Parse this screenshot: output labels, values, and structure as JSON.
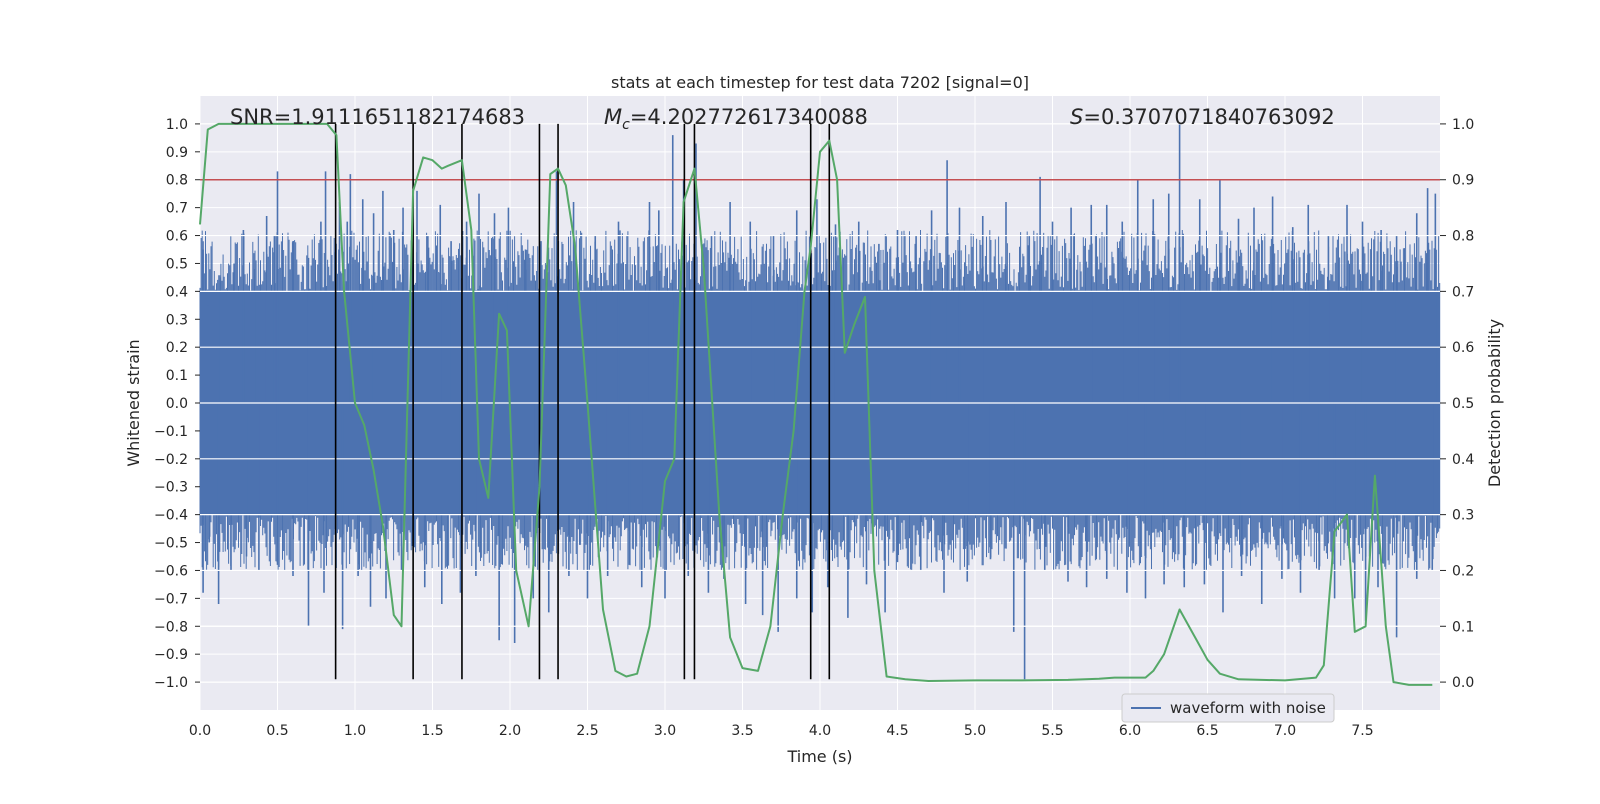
{
  "chart_data": {
    "type": "line",
    "title": "stats at each timestep for test data 7202 [signal=0]",
    "xlabel": "Time (s)",
    "ylabel_left": "Whitened strain",
    "ylabel_right": "Detection probability",
    "annotations": {
      "snr": "SNR=1.9111651182174683",
      "mc_symbol": "M",
      "mc_sub": "c",
      "mc_value": "=4.202772617340088",
      "s_symbol": "S",
      "s_value": "=0.3707071840763092"
    },
    "xlim": [
      0,
      8
    ],
    "ylim_left": [
      -1.1,
      1.1
    ],
    "ylim_right": [
      -0.05,
      1.05
    ],
    "x_ticks": [
      0,
      0.5,
      1,
      1.5,
      2,
      2.5,
      3,
      3.5,
      4,
      4.5,
      5,
      5.5,
      6,
      6.5,
      7,
      7.5
    ],
    "x_tick_labels": [
      "0.0",
      "0.5",
      "1.0",
      "1.5",
      "2.0",
      "2.5",
      "3.0",
      "3.5",
      "4.0",
      "4.5",
      "5.0",
      "5.5",
      "6.0",
      "6.5",
      "7.0",
      "7.5"
    ],
    "y_left_ticks": [
      -1.0,
      -0.9,
      -0.8,
      -0.7,
      -0.6,
      -0.5,
      -0.4,
      -0.3,
      -0.2,
      -0.1,
      0.0,
      0.1,
      0.2,
      0.3,
      0.4,
      0.5,
      0.6,
      0.7,
      0.8,
      0.9,
      1.0
    ],
    "y_left_tick_labels": [
      "−1.0",
      "−0.9",
      "−0.8",
      "−0.7",
      "−0.6",
      "−0.5",
      "−0.4",
      "−0.3",
      "−0.2",
      "−0.1",
      "0.0",
      "0.1",
      "0.2",
      "0.3",
      "0.4",
      "0.5",
      "0.6",
      "0.7",
      "0.8",
      "0.9",
      "1.0"
    ],
    "y_right_ticks": [
      0.0,
      0.1,
      0.2,
      0.3,
      0.4,
      0.5,
      0.6,
      0.7,
      0.8,
      0.9,
      1.0
    ],
    "y_right_tick_labels": [
      "0.0",
      "0.1",
      "0.2",
      "0.3",
      "0.4",
      "0.5",
      "0.6",
      "0.7",
      "0.8",
      "0.9",
      "1.0"
    ],
    "grid": true,
    "legend": {
      "position": "lower-right",
      "entries": [
        "waveform with noise"
      ]
    },
    "threshold": {
      "value": 0.9,
      "axis": "right",
      "color": "#c44e52"
    },
    "detection_lines_x": [
      0.875,
      1.375,
      1.69,
      2.19,
      2.31,
      3.125,
      3.19,
      3.94,
      4.06
    ],
    "detection_line_range": [
      -0.99,
      1.0
    ],
    "series": [
      {
        "name": "waveform with noise",
        "color": "#4c72b0",
        "axis": "left",
        "kind": "noise-envelope",
        "envelope_max": 0.4,
        "spikes_high": [
          [
            0.02,
            0.55
          ],
          [
            0.05,
            0.35
          ],
          [
            0.13,
            0.45
          ],
          [
            0.22,
            0.5
          ],
          [
            0.28,
            0.62
          ],
          [
            0.35,
            0.48
          ],
          [
            0.43,
            0.67
          ],
          [
            0.48,
            0.6
          ],
          [
            0.5,
            0.83
          ],
          [
            0.6,
            0.58
          ],
          [
            0.7,
            0.52
          ],
          [
            0.78,
            0.65
          ],
          [
            0.81,
            0.83
          ],
          [
            0.9,
            0.72
          ],
          [
            0.95,
            0.65
          ],
          [
            0.97,
            0.82
          ],
          [
            1.05,
            0.73
          ],
          [
            1.12,
            0.68
          ],
          [
            1.18,
            0.76
          ],
          [
            1.25,
            0.62
          ],
          [
            1.31,
            0.7
          ],
          [
            1.4,
            0.76
          ],
          [
            1.47,
            0.6
          ],
          [
            1.55,
            0.71
          ],
          [
            1.62,
            0.58
          ],
          [
            1.72,
            0.65
          ],
          [
            1.8,
            0.75
          ],
          [
            1.9,
            0.68
          ],
          [
            1.99,
            0.7
          ],
          [
            2.1,
            0.55
          ],
          [
            2.2,
            0.58
          ],
          [
            2.3,
            0.83
          ],
          [
            2.41,
            0.72
          ],
          [
            2.55,
            0.6
          ],
          [
            2.7,
            0.65
          ],
          [
            2.9,
            0.72
          ],
          [
            2.96,
            0.69
          ],
          [
            3.05,
            0.96
          ],
          [
            3.12,
            0.8
          ],
          [
            3.2,
            0.93
          ],
          [
            3.3,
            0.6
          ],
          [
            3.42,
            0.72
          ],
          [
            3.55,
            0.65
          ],
          [
            3.7,
            0.6
          ],
          [
            3.85,
            0.69
          ],
          [
            3.98,
            0.73
          ],
          [
            4.1,
            0.64
          ],
          [
            4.25,
            0.65
          ],
          [
            4.38,
            0.57
          ],
          [
            4.5,
            0.62
          ],
          [
            4.62,
            0.6
          ],
          [
            4.72,
            0.69
          ],
          [
            4.82,
            0.87
          ],
          [
            4.9,
            0.7
          ],
          [
            5.05,
            0.67
          ],
          [
            5.2,
            0.72
          ],
          [
            5.35,
            0.6
          ],
          [
            5.42,
            0.81
          ],
          [
            5.5,
            0.65
          ],
          [
            5.62,
            0.7
          ],
          [
            5.75,
            0.71
          ],
          [
            5.85,
            0.71
          ],
          [
            5.95,
            0.65
          ],
          [
            6.05,
            0.8
          ],
          [
            6.15,
            0.73
          ],
          [
            6.25,
            0.75
          ],
          [
            6.32,
            1.0
          ],
          [
            6.45,
            0.73
          ],
          [
            6.58,
            0.8
          ],
          [
            6.7,
            0.66
          ],
          [
            6.8,
            0.7
          ],
          [
            6.92,
            0.74
          ],
          [
            7.05,
            0.63
          ],
          [
            7.15,
            0.71
          ],
          [
            7.28,
            0.6
          ],
          [
            7.4,
            0.71
          ],
          [
            7.5,
            0.65
          ],
          [
            7.62,
            0.62
          ],
          [
            7.72,
            0.6
          ],
          [
            7.85,
            0.68
          ],
          [
            7.92,
            0.77
          ],
          [
            7.97,
            0.75
          ]
        ],
        "spikes_low": [
          [
            0.02,
            -0.68
          ],
          [
            0.06,
            -0.5
          ],
          [
            0.12,
            -0.72
          ],
          [
            0.2,
            -0.6
          ],
          [
            0.3,
            -0.55
          ],
          [
            0.38,
            -0.6
          ],
          [
            0.5,
            -0.58
          ],
          [
            0.6,
            -0.62
          ],
          [
            0.7,
            -0.8
          ],
          [
            0.8,
            -0.68
          ],
          [
            0.92,
            -0.81
          ],
          [
            1.02,
            -0.62
          ],
          [
            1.1,
            -0.73
          ],
          [
            1.2,
            -0.7
          ],
          [
            1.3,
            -0.6
          ],
          [
            1.45,
            -0.66
          ],
          [
            1.56,
            -0.72
          ],
          [
            1.68,
            -0.68
          ],
          [
            1.78,
            -0.62
          ],
          [
            1.93,
            -0.85
          ],
          [
            2.03,
            -0.86
          ],
          [
            2.15,
            -0.7
          ],
          [
            2.25,
            -0.75
          ],
          [
            2.38,
            -0.62
          ],
          [
            2.5,
            -0.7
          ],
          [
            2.63,
            -0.62
          ],
          [
            2.77,
            -0.58
          ],
          [
            2.85,
            -0.66
          ],
          [
            3.0,
            -0.7
          ],
          [
            3.15,
            -0.62
          ],
          [
            3.28,
            -0.68
          ],
          [
            3.38,
            -0.63
          ],
          [
            3.52,
            -0.72
          ],
          [
            3.63,
            -0.76
          ],
          [
            3.73,
            -0.82
          ],
          [
            3.85,
            -0.7
          ],
          [
            3.95,
            -0.75
          ],
          [
            4.05,
            -0.66
          ],
          [
            4.18,
            -0.77
          ],
          [
            4.3,
            -0.65
          ],
          [
            4.42,
            -0.75
          ],
          [
            4.5,
            -0.57
          ],
          [
            4.65,
            -0.6
          ],
          [
            4.8,
            -0.68
          ],
          [
            4.95,
            -0.64
          ],
          [
            5.1,
            -0.56
          ],
          [
            5.25,
            -0.82
          ],
          [
            5.32,
            -0.99
          ],
          [
            5.45,
            -0.6
          ],
          [
            5.6,
            -0.64
          ],
          [
            5.72,
            -0.66
          ],
          [
            5.85,
            -0.63
          ],
          [
            5.98,
            -0.68
          ],
          [
            6.1,
            -0.7
          ],
          [
            6.22,
            -0.65
          ],
          [
            6.35,
            -0.66
          ],
          [
            6.48,
            -0.65
          ],
          [
            6.6,
            -0.75
          ],
          [
            6.72,
            -0.62
          ],
          [
            6.85,
            -0.72
          ],
          [
            6.98,
            -0.63
          ],
          [
            7.1,
            -0.68
          ],
          [
            7.22,
            -0.6
          ],
          [
            7.32,
            -0.7
          ],
          [
            7.45,
            -0.7
          ],
          [
            7.52,
            -0.78
          ],
          [
            7.6,
            -0.66
          ],
          [
            7.72,
            -0.84
          ],
          [
            7.85,
            -0.63
          ],
          [
            7.95,
            -0.6
          ]
        ]
      },
      {
        "name": "",
        "color": "#55a868",
        "axis": "right",
        "points": [
          [
            0.0,
            0.82
          ],
          [
            0.05,
            0.99
          ],
          [
            0.12,
            1.0
          ],
          [
            0.3,
            1.0
          ],
          [
            0.6,
            1.0
          ],
          [
            0.82,
            1.0
          ],
          [
            0.88,
            0.98
          ],
          [
            0.93,
            0.7
          ],
          [
            1.0,
            0.5
          ],
          [
            1.06,
            0.46
          ],
          [
            1.12,
            0.38
          ],
          [
            1.18,
            0.28
          ],
          [
            1.25,
            0.12
          ],
          [
            1.3,
            0.1
          ],
          [
            1.375,
            0.88
          ],
          [
            1.44,
            0.94
          ],
          [
            1.5,
            0.935
          ],
          [
            1.56,
            0.92
          ],
          [
            1.6,
            0.925
          ],
          [
            1.69,
            0.935
          ],
          [
            1.75,
            0.81
          ],
          [
            1.8,
            0.4
          ],
          [
            1.86,
            0.33
          ],
          [
            1.93,
            0.66
          ],
          [
            1.98,
            0.63
          ],
          [
            2.04,
            0.2
          ],
          [
            2.12,
            0.1
          ],
          [
            2.19,
            0.35
          ],
          [
            2.26,
            0.91
          ],
          [
            2.31,
            0.92
          ],
          [
            2.36,
            0.89
          ],
          [
            2.42,
            0.78
          ],
          [
            2.5,
            0.5
          ],
          [
            2.6,
            0.13
          ],
          [
            2.68,
            0.02
          ],
          [
            2.75,
            0.01
          ],
          [
            2.82,
            0.015
          ],
          [
            2.9,
            0.1
          ],
          [
            3.0,
            0.36
          ],
          [
            3.06,
            0.4
          ],
          [
            3.12,
            0.86
          ],
          [
            3.19,
            0.92
          ],
          [
            3.25,
            0.74
          ],
          [
            3.35,
            0.3
          ],
          [
            3.42,
            0.08
          ],
          [
            3.5,
            0.025
          ],
          [
            3.6,
            0.02
          ],
          [
            3.68,
            0.1
          ],
          [
            3.76,
            0.3
          ],
          [
            3.83,
            0.45
          ],
          [
            3.9,
            0.7
          ],
          [
            3.94,
            0.78
          ],
          [
            4.0,
            0.95
          ],
          [
            4.06,
            0.97
          ],
          [
            4.11,
            0.9
          ],
          [
            4.16,
            0.59
          ],
          [
            4.22,
            0.64
          ],
          [
            4.29,
            0.69
          ],
          [
            4.35,
            0.2
          ],
          [
            4.43,
            0.01
          ],
          [
            4.55,
            0.005
          ],
          [
            4.7,
            0.002
          ],
          [
            5.0,
            0.003
          ],
          [
            5.3,
            0.003
          ],
          [
            5.6,
            0.004
          ],
          [
            5.8,
            0.006
          ],
          [
            5.9,
            0.008
          ],
          [
            6.0,
            0.008
          ],
          [
            6.1,
            0.008
          ],
          [
            6.15,
            0.02
          ],
          [
            6.22,
            0.05
          ],
          [
            6.32,
            0.13
          ],
          [
            6.42,
            0.08
          ],
          [
            6.5,
            0.04
          ],
          [
            6.58,
            0.015
          ],
          [
            6.7,
            0.005
          ],
          [
            7.0,
            0.003
          ],
          [
            7.2,
            0.008
          ],
          [
            7.25,
            0.03
          ],
          [
            7.32,
            0.27
          ],
          [
            7.4,
            0.3
          ],
          [
            7.45,
            0.09
          ],
          [
            7.52,
            0.1
          ],
          [
            7.58,
            0.37
          ],
          [
            7.65,
            0.1
          ],
          [
            7.7,
            0.0
          ],
          [
            7.8,
            -0.005
          ],
          [
            7.95,
            -0.005
          ]
        ]
      }
    ]
  }
}
